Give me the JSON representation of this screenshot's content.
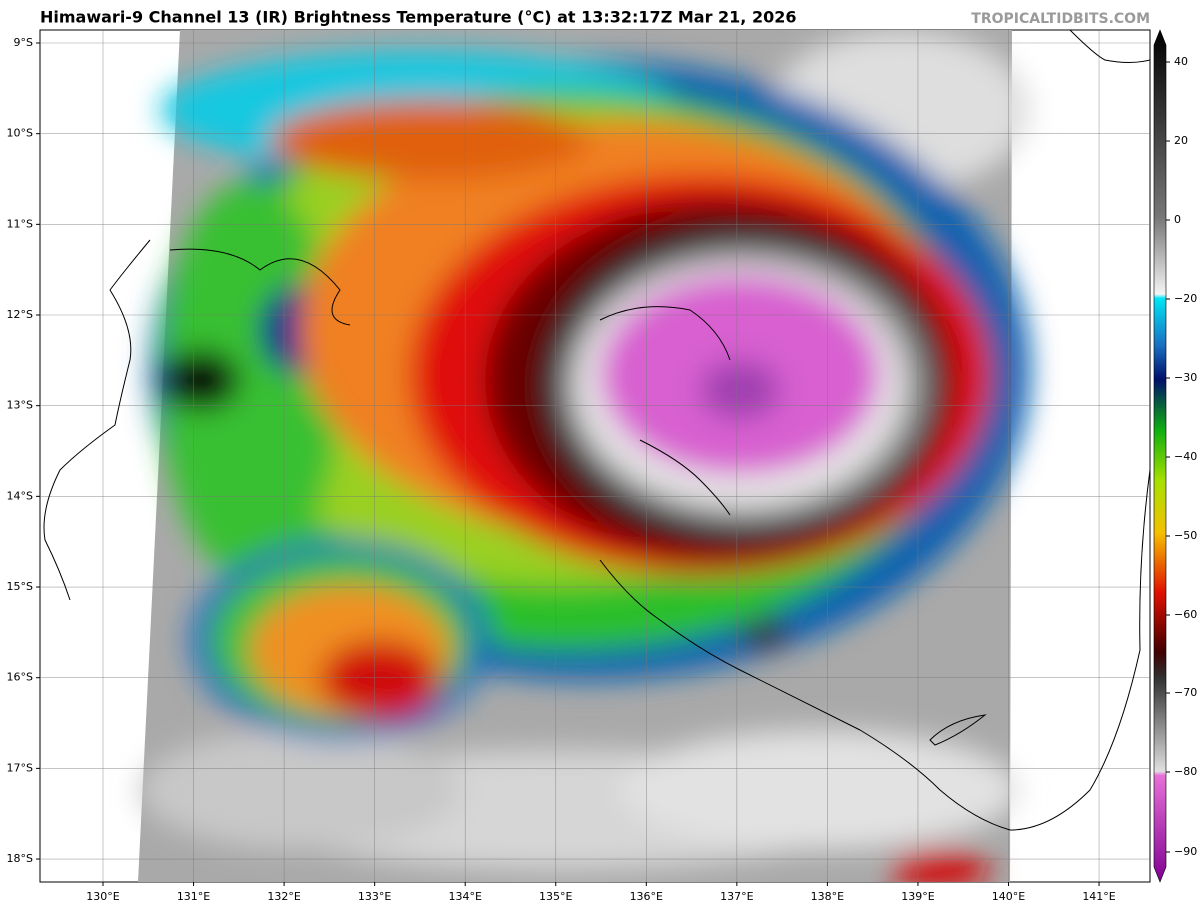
{
  "header": {
    "title": "Himawari-9 Channel 13 (IR) Brightness Temperature (°C) at 13:32:17Z Mar 21, 2026",
    "credit": "TROPICALTIDBITS.COM"
  },
  "map": {
    "lat_labels": [
      "9°S",
      "10°S",
      "11°S",
      "12°S",
      "13°S",
      "14°S",
      "15°S",
      "16°S",
      "17°S",
      "18°S"
    ],
    "lon_labels": [
      "130°E",
      "131°E",
      "132°E",
      "133°E",
      "134°E",
      "135°E",
      "136°E",
      "137°E",
      "138°E",
      "139°E",
      "140°E",
      "141°E"
    ]
  },
  "colorbar": {
    "tick_labels": [
      "40",
      "20",
      "0",
      "−20",
      "−30",
      "−40",
      "−50",
      "−60",
      "−70",
      "−80",
      "−90"
    ]
  }
}
